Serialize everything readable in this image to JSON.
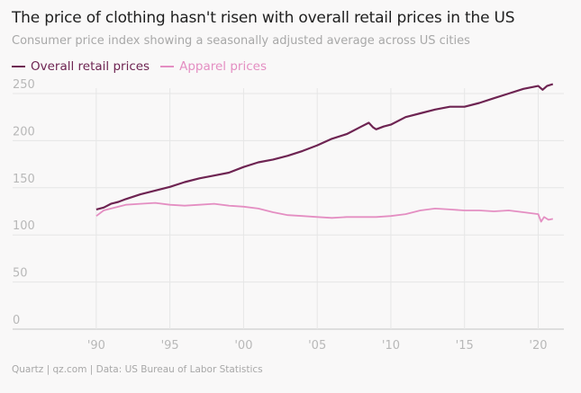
{
  "title": "The price of clothing hasn't risen with overall retail prices in the US",
  "subtitle": "Consumer price index showing a seasonally adjusted average across US cities",
  "footer": "Quartz | qz.com | Data: US Bureau of Labor Statistics",
  "colors": {
    "overall": "#6e2452",
    "apparel": "#e48ec2",
    "grid": "#e6e6e6",
    "axis_text": "#b8b8b8"
  },
  "chart_data": {
    "type": "line",
    "title": "The price of clothing hasn't risen with overall retail prices in the US",
    "xlabel": "",
    "ylabel": "",
    "xlim": [
      1987.5,
      2021.5
    ],
    "ylim": [
      0,
      260
    ],
    "grid": true,
    "legend": "top-left",
    "x_ticks": [
      1990,
      1995,
      2000,
      2005,
      2010,
      2015,
      2020
    ],
    "x_tick_labels": [
      "'90",
      "'95",
      "'00",
      "'05",
      "'10",
      "'15",
      "'20"
    ],
    "y_ticks": [
      0,
      50,
      100,
      150,
      200,
      250
    ],
    "y_tick_labels": [
      "0",
      "50",
      "100",
      "150",
      "200",
      "250"
    ],
    "series": [
      {
        "name": "Overall retail prices",
        "x": [
          1990,
          1990.5,
          1991,
          1991.5,
          1992,
          1993,
          1994,
          1995,
          1996,
          1997,
          1998,
          1999,
          2000,
          2001,
          2002,
          2003,
          2004,
          2005,
          2006,
          2007,
          2008,
          2008.5,
          2008.8,
          2009,
          2009.5,
          2010,
          2011,
          2012,
          2013,
          2014,
          2015,
          2016,
          2017,
          2018,
          2019,
          2020,
          2020.3,
          2020.6,
          2021
        ],
        "values": [
          127,
          129,
          133,
          135,
          138,
          143,
          147,
          151,
          156,
          160,
          163,
          166,
          172,
          177,
          180,
          184,
          189,
          195,
          202,
          207,
          215,
          219,
          214,
          212,
          215,
          217,
          225,
          229,
          233,
          236,
          236,
          240,
          245,
          250,
          255,
          258,
          254,
          258,
          260
        ]
      },
      {
        "name": "Apparel prices",
        "x": [
          1990,
          1990.5,
          1991,
          1992,
          1993,
          1994,
          1995,
          1996,
          1997,
          1998,
          1999,
          2000,
          2001,
          2002,
          2003,
          2004,
          2005,
          2006,
          2007,
          2008,
          2009,
          2010,
          2011,
          2012,
          2013,
          2014,
          2015,
          2016,
          2017,
          2018,
          2019,
          2020,
          2020.2,
          2020.4,
          2020.7,
          2021
        ],
        "values": [
          120,
          126,
          128,
          132,
          133,
          134,
          132,
          131,
          132,
          133,
          131,
          130,
          128,
          124,
          121,
          120,
          119,
          118,
          119,
          119,
          119,
          120,
          122,
          126,
          128,
          127,
          126,
          126,
          125,
          126,
          124,
          122,
          114,
          119,
          116,
          117
        ]
      }
    ]
  }
}
